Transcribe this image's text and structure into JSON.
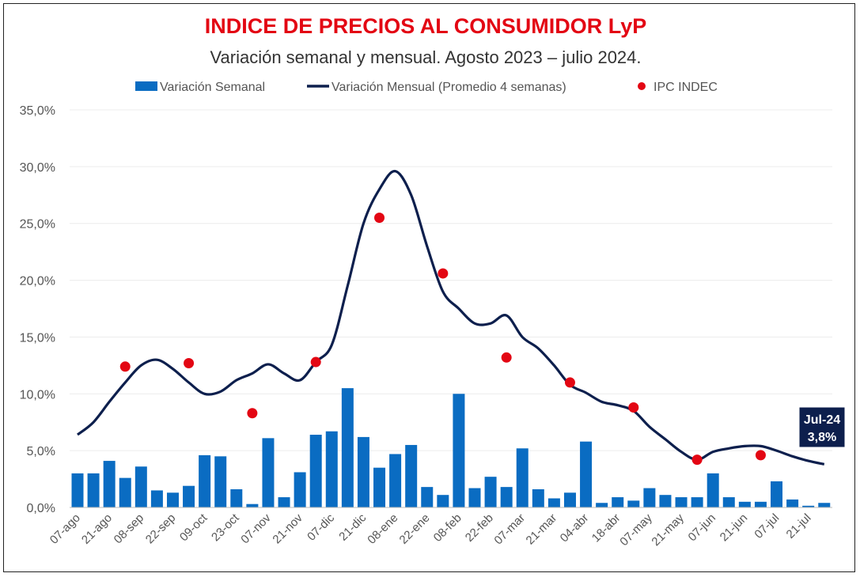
{
  "chart_data": {
    "type": "bar",
    "title": "INDICE DE PRECIOS AL CONSUMIDOR LyP",
    "subtitle": "Variación semanal y mensual. Agosto 2023 – julio 2024.",
    "xlabel": "",
    "ylabel": "",
    "ylim": [
      0,
      35
    ],
    "yticks": [
      "0,0%",
      "5,0%",
      "10,0%",
      "15,0%",
      "20,0%",
      "25,0%",
      "30,0%",
      "35,0%"
    ],
    "ytick_values": [
      0,
      5,
      10,
      15,
      20,
      25,
      30,
      35
    ],
    "grid": true,
    "legend_position": "top",
    "x_tick_labels": [
      "07-ago",
      "21-ago",
      "08-sep",
      "22-sep",
      "09-oct",
      "23-oct",
      "07-nov",
      "21-nov",
      "07-dic",
      "21-dic",
      "08-ene",
      "22-ene",
      "08-feb",
      "22-feb",
      "07-mar",
      "21-mar",
      "04-abr",
      "18-abr",
      "07-may",
      "21-may",
      "07-jun",
      "21-jun",
      "07-jul",
      "21-jul"
    ],
    "series": [
      {
        "name": "Variación Semanal",
        "type": "bar",
        "color": "#0a6cc2",
        "values": [
          3.0,
          3.0,
          4.1,
          2.6,
          3.6,
          1.5,
          1.3,
          1.9,
          4.6,
          4.5,
          1.6,
          0.3,
          6.1,
          0.9,
          3.1,
          6.4,
          6.7,
          10.5,
          6.2,
          3.5,
          4.7,
          5.5,
          1.8,
          1.1,
          10.0,
          1.7,
          2.7,
          1.8,
          5.2,
          1.6,
          0.8,
          1.3,
          5.8,
          0.4,
          0.9,
          0.6,
          1.7,
          1.1,
          0.9,
          0.9,
          3.0,
          0.9,
          0.5,
          0.5,
          2.3,
          0.7,
          0.15,
          0.4
        ]
      },
      {
        "name": "Variación Mensual (Promedio 4 semanas)",
        "type": "line",
        "color": "#0d1f4d",
        "values": [
          6.4,
          7.5,
          9.3,
          11.0,
          12.5,
          13.0,
          12.2,
          11.0,
          10.0,
          10.2,
          11.2,
          11.8,
          12.6,
          11.8,
          11.2,
          12.8,
          14.3,
          19.5,
          25.0,
          28.0,
          29.6,
          27.5,
          23.0,
          19.0,
          17.5,
          16.2,
          16.2,
          16.9,
          15.0,
          14.0,
          12.5,
          10.8,
          10.1,
          9.3,
          9.0,
          8.5,
          7.1,
          6.0,
          4.9,
          4.2,
          4.9,
          5.2,
          5.4,
          5.4,
          5.0,
          4.5,
          4.1,
          3.8
        ]
      },
      {
        "name": "IPC INDEC",
        "type": "scatter",
        "color": "#e30613",
        "week_index": [
          3,
          7,
          11,
          15,
          19,
          23,
          27,
          31,
          35,
          39,
          43
        ],
        "values": [
          12.4,
          12.7,
          8.3,
          12.8,
          25.5,
          20.6,
          13.2,
          11.0,
          8.8,
          4.2,
          4.6
        ]
      }
    ],
    "annotation": {
      "line1": "Jul-24",
      "line2": "3,8%"
    }
  }
}
